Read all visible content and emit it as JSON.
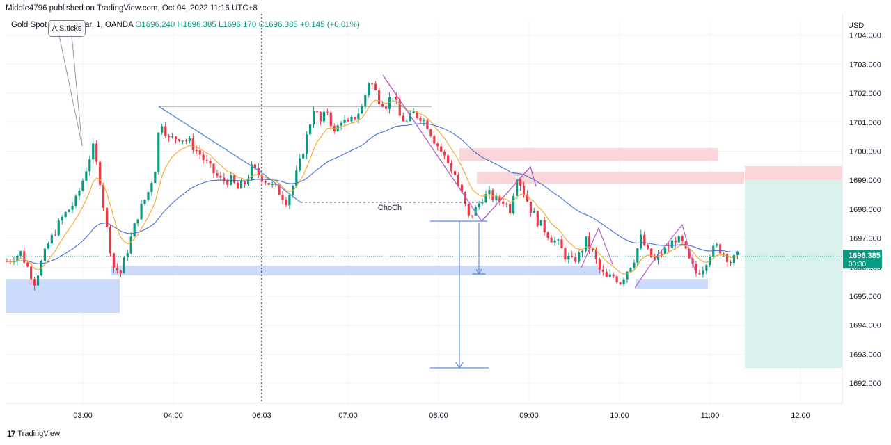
{
  "header": {
    "publisher": "Middle4796 published on TradingView.com, Oct 04, 2022 11:16 UTC+8"
  },
  "legend": {
    "symbol": "Gold Spot / U.S. Dollar, 1, OANDA",
    "open": "O1696.240",
    "high": "H1696.385",
    "low": "L1696.170",
    "close": "C1696.385",
    "change": "+0.145 (+0.01%)"
  },
  "callout": {
    "text": "A.S.ticks"
  },
  "footer": {
    "logo_glyph": "17",
    "brand": "TradingView"
  },
  "colors": {
    "up": "#089981",
    "down": "#f23645",
    "ema_fast": "#f5a623",
    "ema_slow": "#3f6fd8",
    "zone_blue": "#c7d7fa",
    "zone_red": "#fad2d6",
    "target_green": "#d5f0ea",
    "zigzag_purple": "#b65ec9",
    "trend_blue": "#5b8fd8",
    "last_price_bg": "#089981"
  },
  "chart_data": {
    "type": "candlestick",
    "currency": "USD",
    "y_ticks": [
      "1704.000",
      "1703.000",
      "1702.000",
      "1701.000",
      "1700.000",
      "1699.000",
      "1698.000",
      "1697.000",
      "1696.000",
      "1695.000",
      "1694.000",
      "1693.000",
      "1692.000"
    ],
    "x_ticks": [
      "03:00",
      "04:00",
      "06:03",
      "07:00",
      "08:00",
      "09:00",
      "10:00",
      "11:00",
      "12:00"
    ],
    "last_price": "1696.385",
    "countdown": "00:30",
    "annotation": "ChoCh",
    "close_path": [
      [
        0,
        1696.2
      ],
      [
        4,
        1696.5
      ],
      [
        8,
        1695.5
      ],
      [
        12,
        1696.8
      ],
      [
        16,
        1697.7
      ],
      [
        20,
        1698.3
      ],
      [
        22,
        1699.0
      ],
      [
        24,
        1699.8
      ],
      [
        25,
        1700.1
      ],
      [
        27,
        1699.0
      ],
      [
        29,
        1697.3
      ],
      [
        31,
        1696.0
      ],
      [
        33,
        1695.8
      ],
      [
        35,
        1696.6
      ],
      [
        38,
        1697.8
      ],
      [
        41,
        1698.6
      ],
      [
        43,
        1699.4
      ],
      [
        44,
        1700.6
      ],
      [
        45,
        1701.0
      ],
      [
        47,
        1700.4
      ],
      [
        50,
        1700.5
      ],
      [
        53,
        1700.3
      ],
      [
        56,
        1699.9
      ],
      [
        59,
        1699.4
      ],
      [
        62,
        1699.0
      ],
      [
        65,
        1699.0
      ],
      [
        67,
        1698.7
      ],
      [
        69,
        1698.9
      ],
      [
        71,
        1699.4
      ],
      [
        73,
        1699.2
      ],
      [
        76,
        1698.9
      ],
      [
        79,
        1698.6
      ],
      [
        81,
        1698.3
      ],
      [
        83,
        1698.8
      ],
      [
        85,
        1699.6
      ],
      [
        87,
        1700.5
      ],
      [
        89,
        1701.5
      ],
      [
        91,
        1701.0
      ],
      [
        93,
        1701.4
      ],
      [
        95,
        1700.6
      ],
      [
        97,
        1701.1
      ],
      [
        99,
        1700.9
      ],
      [
        101,
        1701.2
      ],
      [
        103,
        1701.5
      ],
      [
        105,
        1702.4
      ],
      [
        106,
        1702.3
      ],
      [
        108,
        1701.8
      ],
      [
        110,
        1701.6
      ],
      [
        112,
        1702.0
      ],
      [
        114,
        1701.2
      ],
      [
        116,
        1701.0
      ],
      [
        118,
        1701.3
      ],
      [
        120,
        1701.2
      ],
      [
        122,
        1700.9
      ],
      [
        124,
        1700.4
      ],
      [
        126,
        1700.0
      ],
      [
        128,
        1699.6
      ],
      [
        130,
        1699.2
      ],
      [
        132,
        1698.5
      ],
      [
        134,
        1697.7
      ],
      [
        136,
        1698.0
      ],
      [
        138,
        1698.4
      ],
      [
        140,
        1698.5
      ],
      [
        142,
        1698.3
      ],
      [
        144,
        1698.3
      ],
      [
        146,
        1698.0
      ],
      [
        148,
        1699.2
      ],
      [
        150,
        1698.6
      ],
      [
        152,
        1698.0
      ],
      [
        154,
        1697.6
      ],
      [
        156,
        1697.3
      ],
      [
        158,
        1697.0
      ],
      [
        160,
        1696.8
      ],
      [
        162,
        1696.4
      ],
      [
        164,
        1696.2
      ],
      [
        166,
        1696.4
      ],
      [
        168,
        1696.9
      ],
      [
        170,
        1696.5
      ],
      [
        172,
        1695.9
      ],
      [
        174,
        1695.6
      ],
      [
        176,
        1695.7
      ],
      [
        178,
        1695.5
      ],
      [
        180,
        1695.9
      ],
      [
        182,
        1696.3
      ],
      [
        184,
        1697.0
      ],
      [
        186,
        1696.5
      ],
      [
        188,
        1696.2
      ],
      [
        190,
        1696.5
      ],
      [
        192,
        1696.7
      ],
      [
        194,
        1697.0
      ],
      [
        196,
        1696.8
      ],
      [
        198,
        1696.2
      ],
      [
        200,
        1695.8
      ],
      [
        202,
        1696.0
      ],
      [
        204,
        1696.5
      ],
      [
        206,
        1696.7
      ],
      [
        208,
        1696.5
      ],
      [
        210,
        1696.2
      ],
      [
        212,
        1696.38
      ]
    ]
  }
}
